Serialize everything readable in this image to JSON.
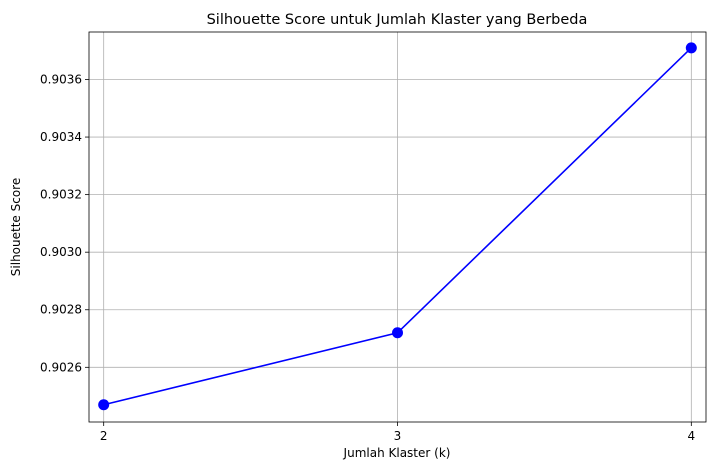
{
  "chart_data": {
    "type": "line",
    "title": "Silhouette Score untuk Jumlah Klaster yang Berbeda",
    "xlabel": "Jumlah Klaster (k)",
    "ylabel": "Silhouette Score",
    "x": [
      2,
      3,
      4
    ],
    "xticks": [
      "2",
      "3",
      "4"
    ],
    "series": [
      {
        "values": [
          0.90247,
          0.90272,
          0.90371
        ],
        "color": "#0000ff",
        "marker": "circle"
      }
    ],
    "yticks": [
      "0.9026",
      "0.9028",
      "0.9030",
      "0.9032",
      "0.9034",
      "0.9036"
    ],
    "ytick_values": [
      0.9026,
      0.9028,
      0.903,
      0.9032,
      0.9034,
      0.9036
    ],
    "xlim": [
      1.95,
      4.05
    ],
    "ylim": [
      0.90241,
      0.903765
    ],
    "grid": true
  }
}
